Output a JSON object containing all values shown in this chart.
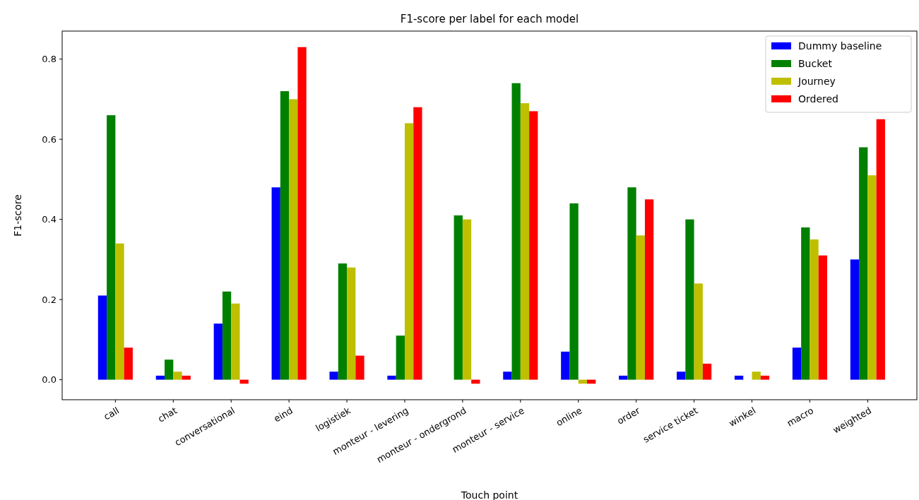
{
  "chart_data": {
    "type": "bar",
    "title": "F1-score per label for each model",
    "xlabel": "Touch point",
    "ylabel": "F1-score",
    "categories": [
      "call",
      "chat",
      "conversational",
      "eind",
      "logistiek",
      "monteur - levering",
      "monteur - ondergrond",
      "monteur - service",
      "online",
      "order",
      "service ticket",
      "winkel",
      "macro",
      "weighted"
    ],
    "series": [
      {
        "name": "Dummy baseline",
        "color": "#0000ff",
        "values": [
          0.21,
          0.01,
          0.14,
          0.48,
          0.02,
          0.01,
          0,
          0.02,
          0.07,
          0.01,
          0.02,
          0.01,
          0.08,
          0.3
        ]
      },
      {
        "name": "Bucket",
        "color": "#008000",
        "values": [
          0.66,
          0.05,
          0.22,
          0.72,
          0.29,
          0.11,
          0.41,
          0.74,
          0.44,
          0.48,
          0.4,
          0,
          0.38,
          0.58
        ]
      },
      {
        "name": "Journey",
        "color": "#bfbf00",
        "values": [
          0.34,
          0.02,
          0.19,
          0.7,
          0.28,
          0.64,
          0.4,
          0.69,
          -0.01,
          0.36,
          0.24,
          0.02,
          0.35,
          0.51
        ]
      },
      {
        "name": "Ordered",
        "color": "#ff0000",
        "values": [
          0.08,
          0.01,
          -0.01,
          0.83,
          0.06,
          0.68,
          -0.01,
          0.67,
          -0.01,
          0.45,
          0.04,
          0.01,
          0.31,
          0.65
        ]
      }
    ],
    "ylim": [
      -0.05,
      0.87
    ],
    "yticks": [
      {
        "value": 0,
        "label": "0.0"
      },
      {
        "value": 0.2,
        "label": "0.2"
      },
      {
        "value": 0.4,
        "label": "0.4"
      },
      {
        "value": 0.6,
        "label": "0.6"
      },
      {
        "value": 0.8,
        "label": "0.8"
      }
    ],
    "grid": false,
    "legend": "top right"
  }
}
